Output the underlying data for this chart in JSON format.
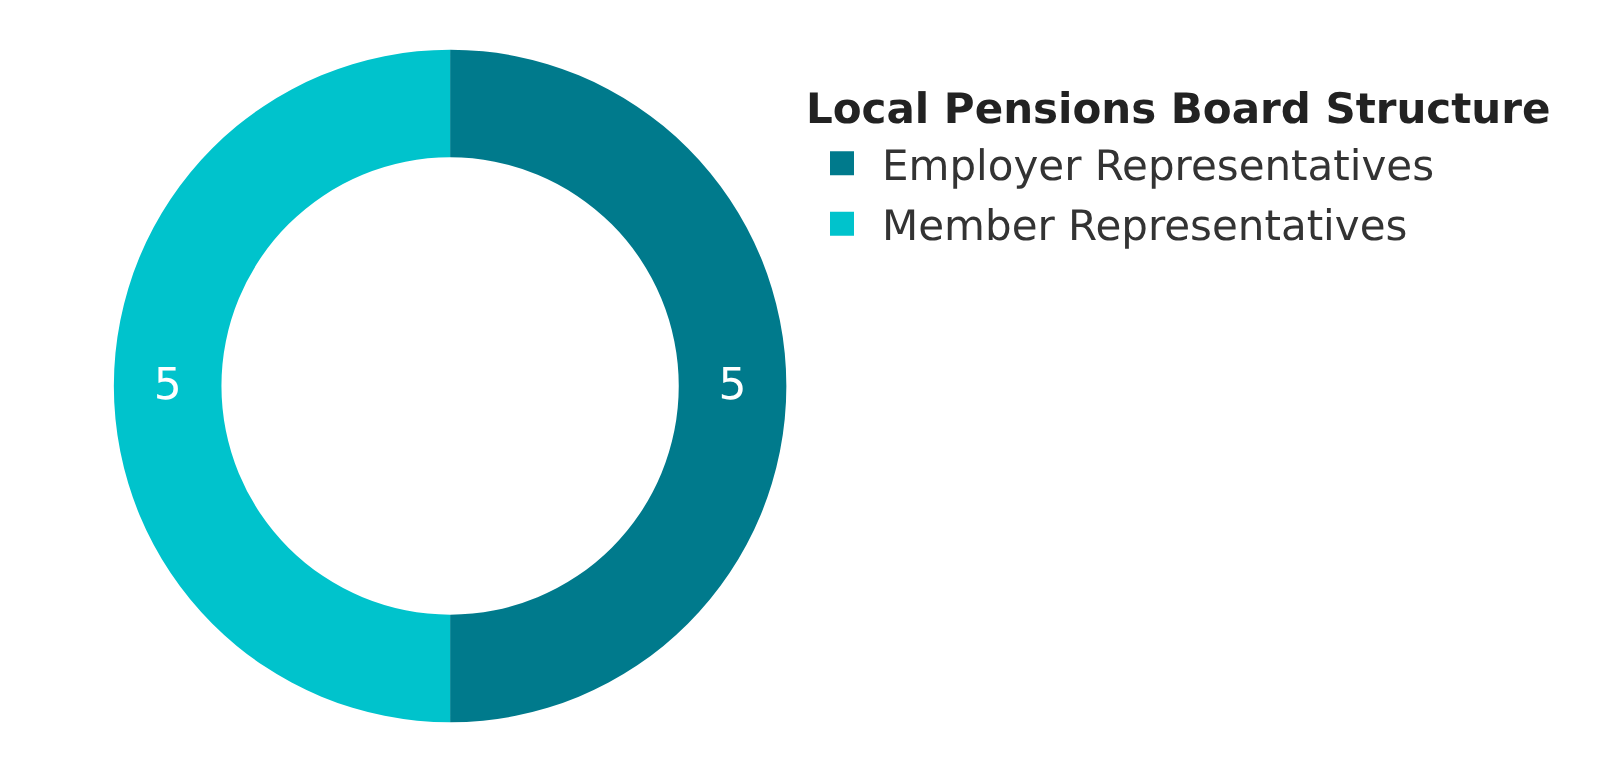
{
  "chart_data": {
    "type": "donut",
    "legend_title": "Local Pensions Board Structure",
    "categories": [
      "Employer Representatives",
      "Member Representatives"
    ],
    "values": [
      5,
      5
    ],
    "colors": [
      "#007a8c",
      "#00c3cc"
    ],
    "data_labels": true,
    "legend": "top right"
  }
}
